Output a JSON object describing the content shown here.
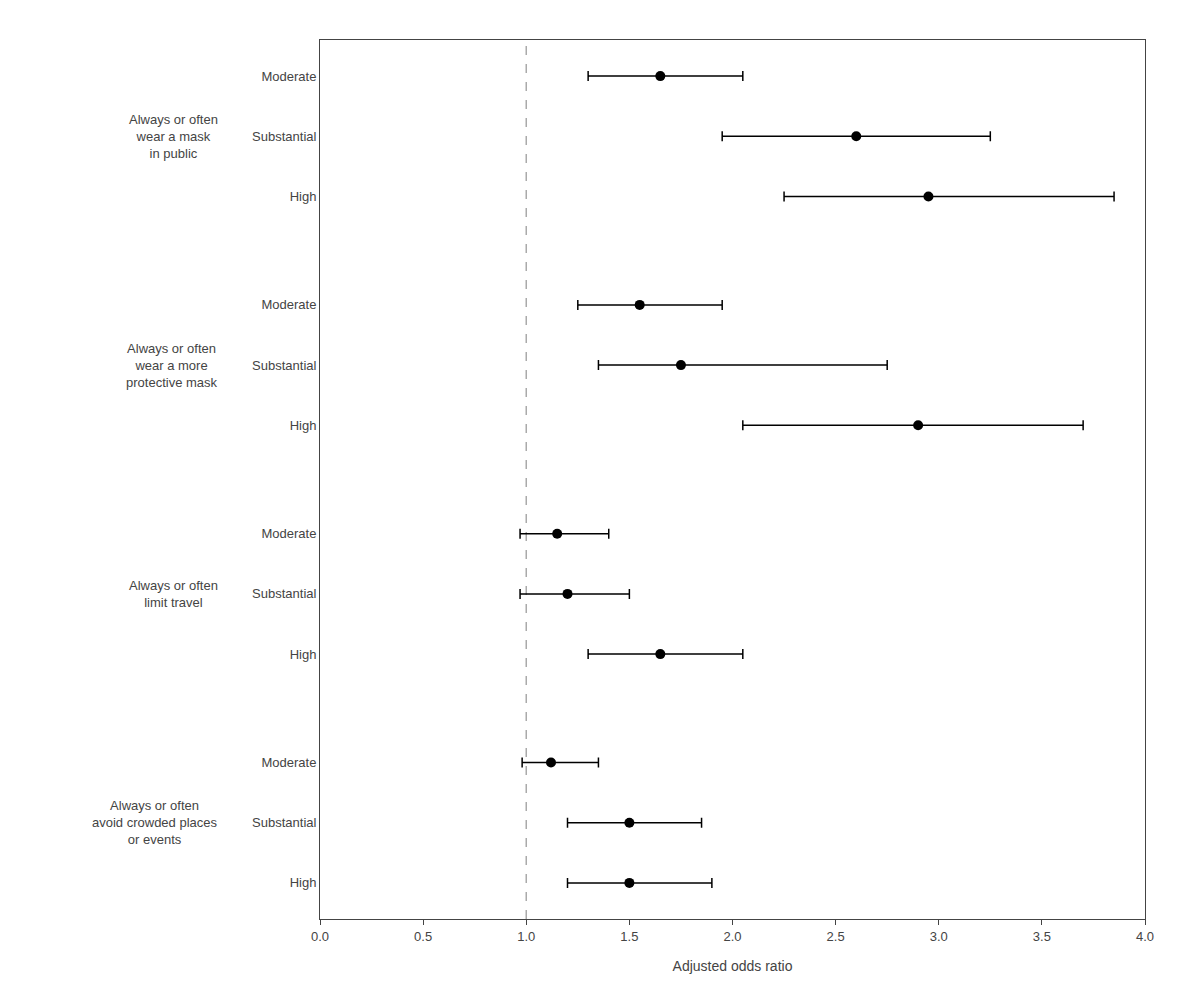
{
  "chart_data": {
    "type": "forest",
    "groups": [
      {
        "label": "Always or often\nwear a mask\nin public",
        "rows": [
          {
            "level": "Moderate",
            "value": 1.65,
            "ci_lo": 1.3,
            "ci_hi": 2.05
          },
          {
            "level": "Substantial",
            "value": 2.6,
            "ci_lo": 1.95,
            "ci_hi": 3.25
          },
          {
            "level": "High",
            "value": 2.95,
            "ci_lo": 2.25,
            "ci_hi": 3.85
          }
        ]
      },
      {
        "label": "Always or often\nwear a more\nprotective mask",
        "rows": [
          {
            "level": "Moderate",
            "value": 1.55,
            "ci_lo": 1.25,
            "ci_hi": 1.95
          },
          {
            "level": "Substantial",
            "value": 1.75,
            "ci_lo": 1.35,
            "ci_hi": 2.75
          },
          {
            "level": "High",
            "value": 2.9,
            "ci_lo": 2.05,
            "ci_hi": 3.7
          }
        ]
      },
      {
        "label": "Always or often\nlimit travel",
        "rows": [
          {
            "level": "Moderate",
            "value": 1.15,
            "ci_lo": 0.97,
            "ci_hi": 1.4
          },
          {
            "level": "Substantial",
            "value": 1.2,
            "ci_lo": 0.97,
            "ci_hi": 1.5
          },
          {
            "level": "High",
            "value": 1.65,
            "ci_lo": 1.3,
            "ci_hi": 2.05
          }
        ]
      },
      {
        "label": "Always or often\navoid crowded places\nor events",
        "rows": [
          {
            "level": "Moderate",
            "value": 1.12,
            "ci_lo": 0.98,
            "ci_hi": 1.35
          },
          {
            "level": "Substantial",
            "value": 1.5,
            "ci_lo": 1.2,
            "ci_hi": 1.85
          },
          {
            "level": "High",
            "value": 1.5,
            "ci_lo": 1.2,
            "ci_hi": 1.9
          }
        ]
      }
    ],
    "xlabel": "Adjusted odds ratio",
    "xlim": [
      0.0,
      4.0
    ],
    "xticks": [
      {
        "value": 0.0,
        "label": "0.0"
      },
      0.5,
      {
        "value": 1.0,
        "label": "1.0"
      },
      1.5,
      {
        "value": 2.0,
        "label": "2.0"
      },
      2.5,
      {
        "value": 3.0,
        "label": "3.0"
      },
      3.5,
      {
        "value": 4.0,
        "label": "4.0"
      }
    ],
    "reference_line": {
      "value": 1.0,
      "color": "#aaaaaa",
      "line_style": "dashed"
    },
    "color": "#000000",
    "marker": "circle",
    "grid": false
  }
}
